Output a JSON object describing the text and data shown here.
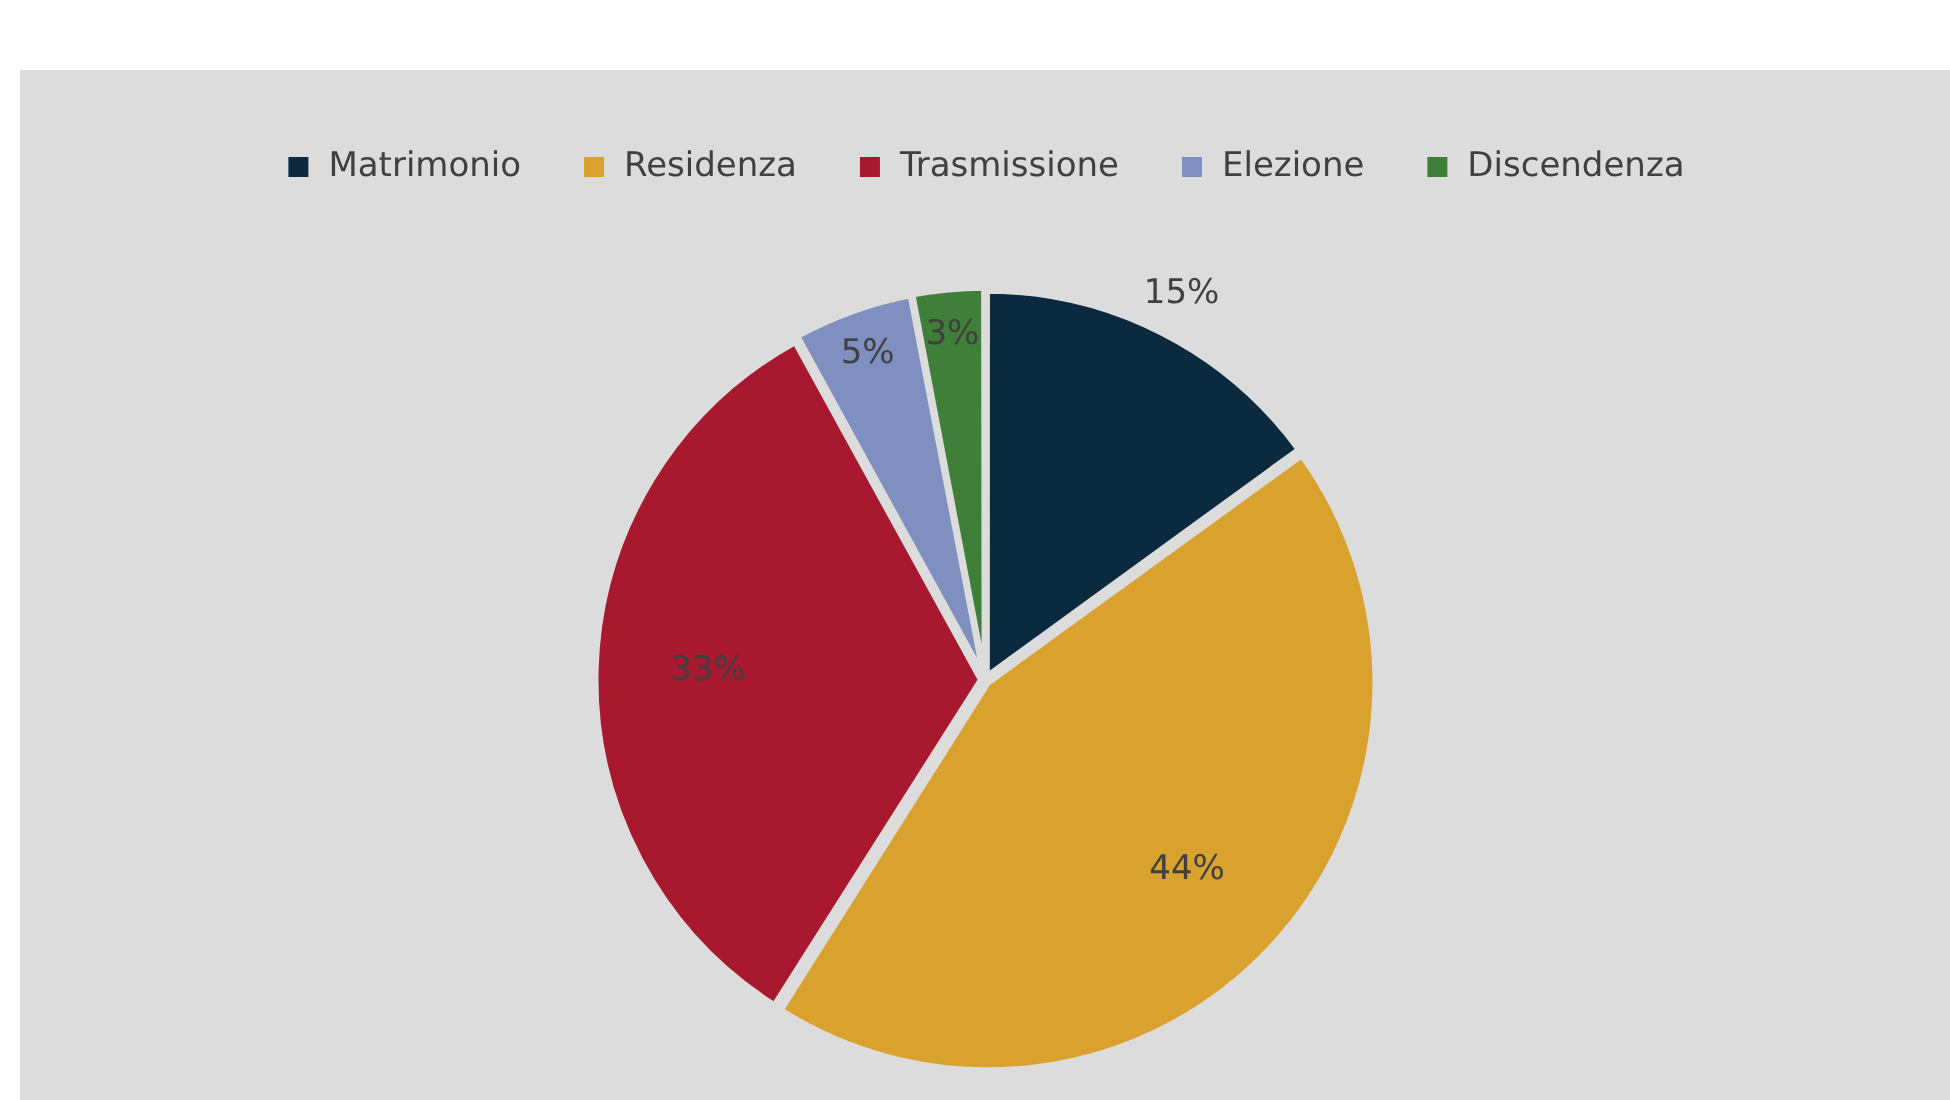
{
  "chart_data": {
    "type": "pie",
    "categories": [
      "Matrimonio",
      "Residenza",
      "Trasmissione",
      "Elezione",
      "Discendenza"
    ],
    "values": [
      15,
      44,
      33,
      5,
      3
    ],
    "value_labels": [
      "15%",
      "44%",
      "33%",
      "5%",
      "3%"
    ],
    "colors": [
      "#0b2a40",
      "#d9a22e",
      "#a8182e",
      "#7f8fc0",
      "#3f7f3a"
    ],
    "legend": "top"
  }
}
